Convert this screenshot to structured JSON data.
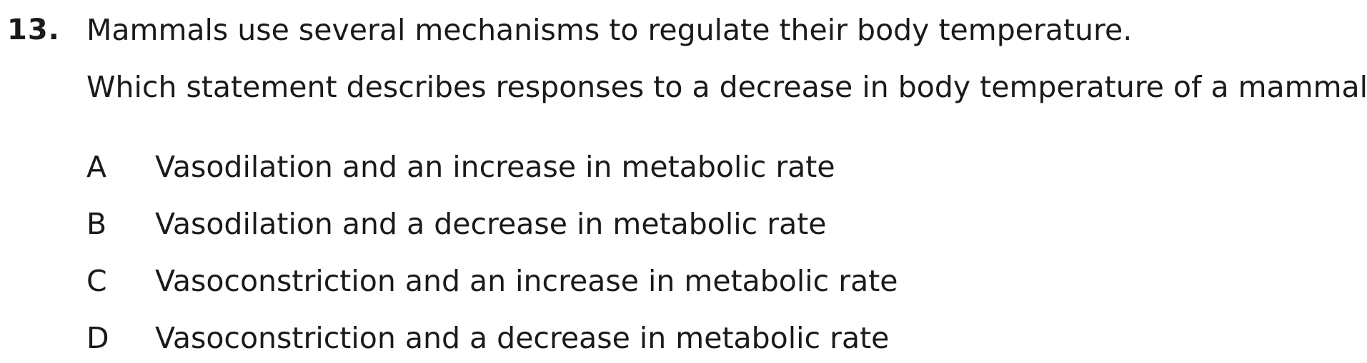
{
  "question": {
    "number": "13.",
    "stem": "Mammals use several mechanisms to regulate their body temperature.",
    "prompt": "Which statement describes responses to a decrease in body temperature of a mammal?",
    "options": [
      {
        "letter": "A",
        "text": "Vasodilation and an increase in metabolic rate"
      },
      {
        "letter": "B",
        "text": "Vasodilation and a decrease in metabolic rate"
      },
      {
        "letter": "C",
        "text": "Vasoconstriction and an increase in metabolic rate"
      },
      {
        "letter": "D",
        "text": "Vasoconstriction and a decrease in metabolic rate"
      }
    ]
  }
}
